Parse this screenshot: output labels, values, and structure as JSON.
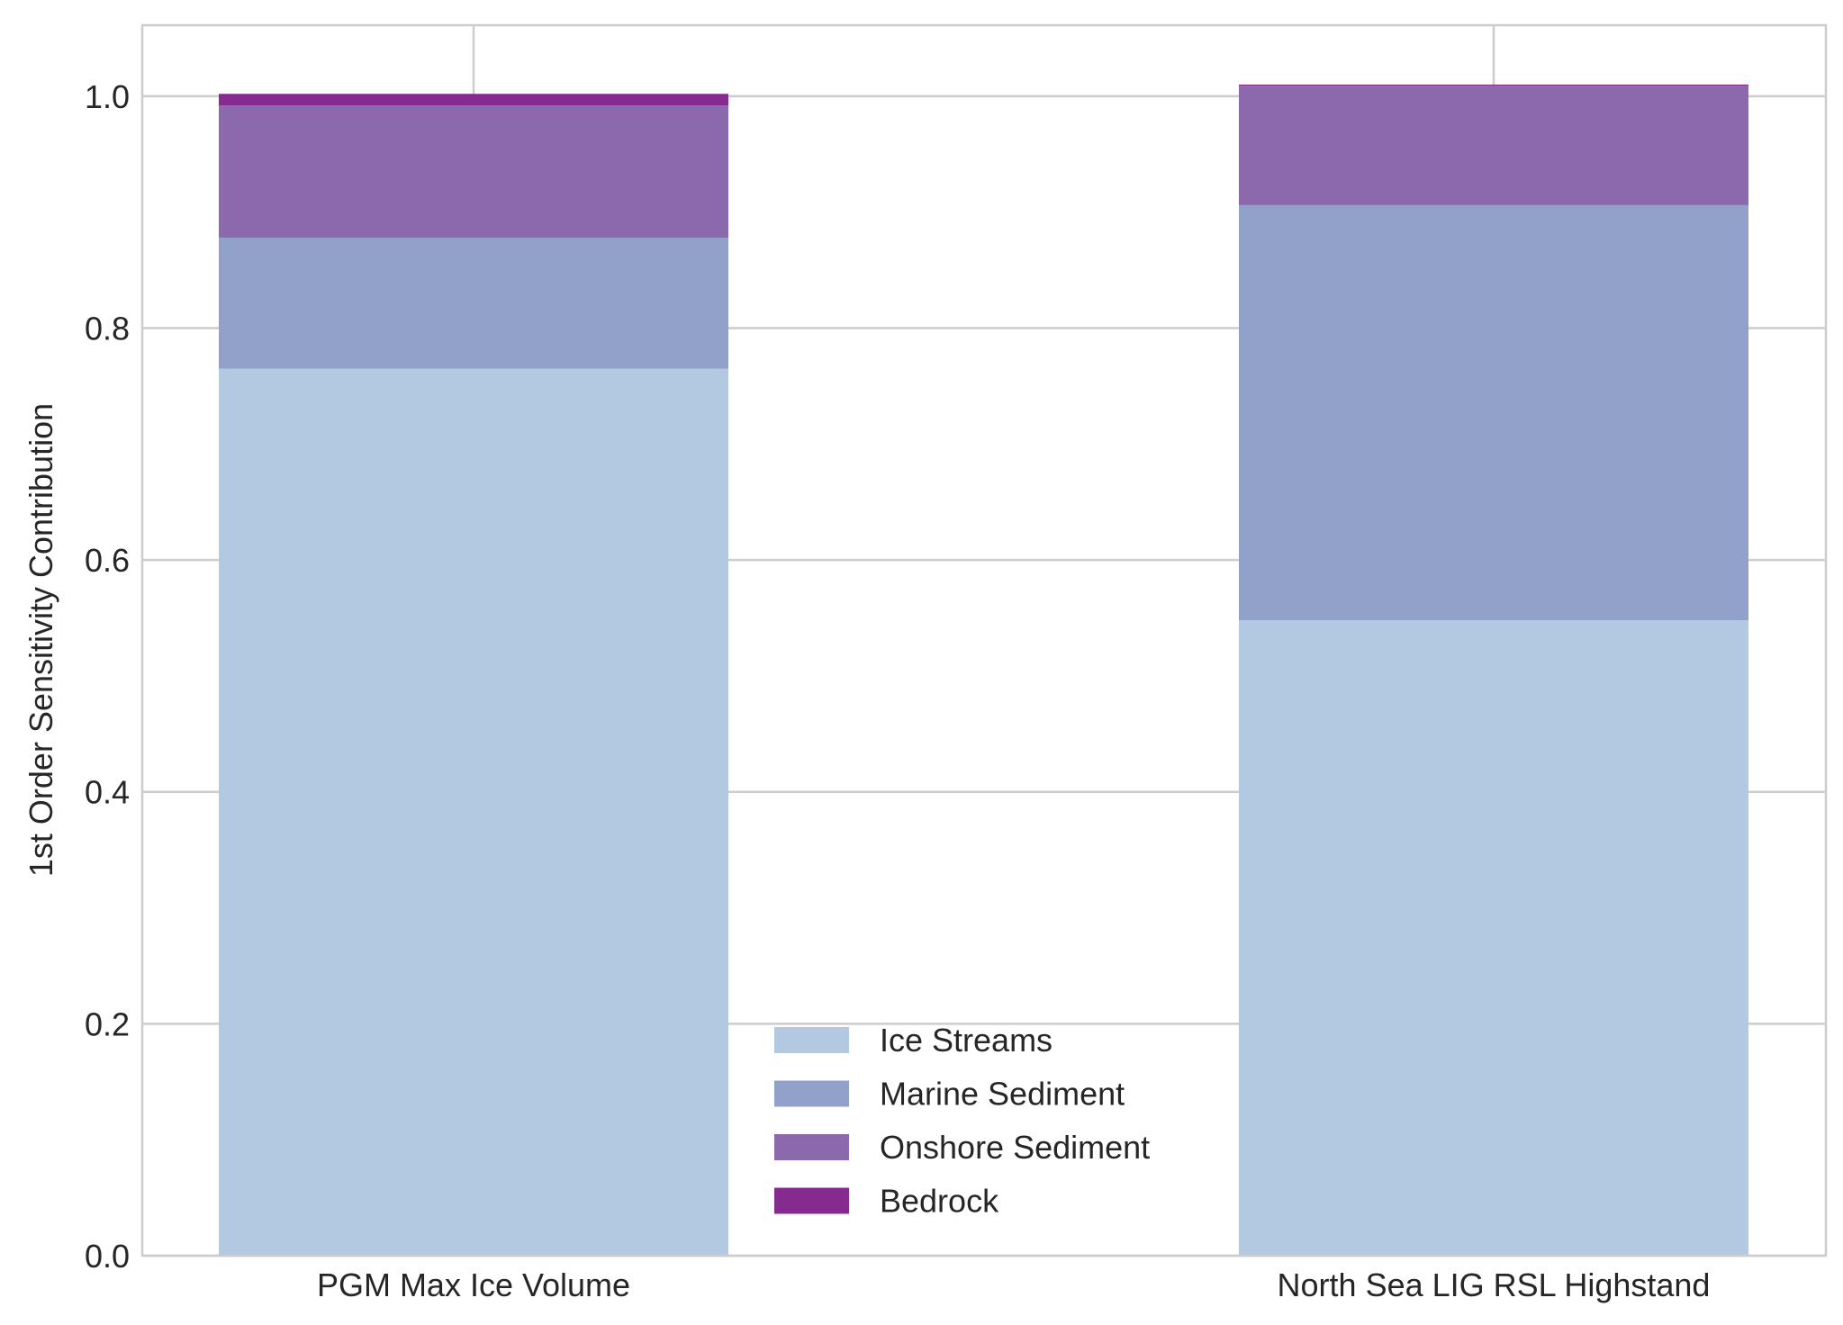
{
  "chart_data": {
    "type": "bar",
    "stacked": true,
    "categories": [
      "PGM Max Ice Volume",
      "North Sea LIG RSL Highstand"
    ],
    "series": [
      {
        "name": "Ice Streams",
        "color": "#b3c9e1",
        "values": [
          0.765,
          0.548
        ]
      },
      {
        "name": "Marine Sediment",
        "color": "#91a1ca",
        "values": [
          0.113,
          0.358
        ]
      },
      {
        "name": "Onshore Sediment",
        "color": "#8c69ad",
        "values": [
          0.114,
          0.103
        ]
      },
      {
        "name": "Bedrock",
        "color": "#852a8f",
        "values": [
          0.01,
          0.001
        ]
      }
    ],
    "title": "",
    "xlabel": "",
    "ylabel": "1st Order Sensitivity Contribution",
    "ylim": [
      0,
      1.0612
    ],
    "yticks": [
      0.0,
      0.2,
      0.4,
      0.6,
      0.8,
      1.0
    ],
    "ytick_labels": [
      "0.0",
      "0.2",
      "0.4",
      "0.6",
      "0.8",
      "1.0"
    ],
    "grid": true,
    "legend_position": "lower-center"
  }
}
